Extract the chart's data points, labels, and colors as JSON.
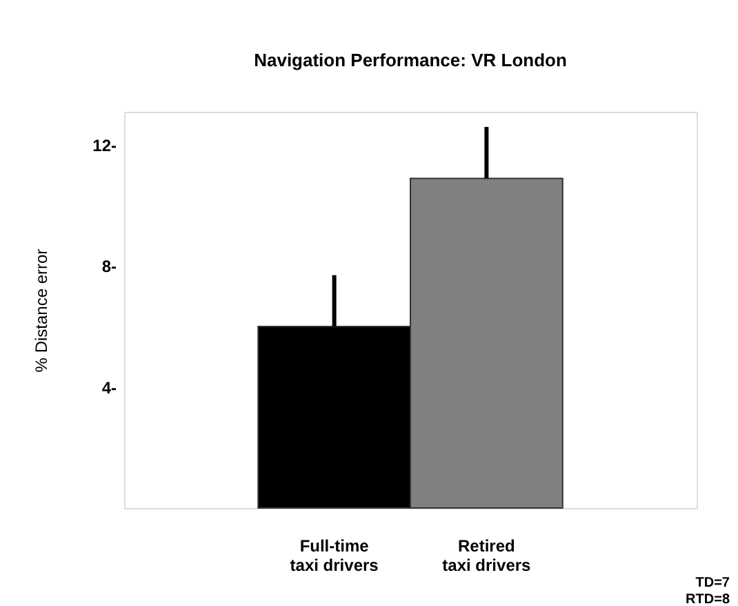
{
  "chart_data": {
    "type": "bar",
    "title": "Navigation Performance: VR London",
    "ylabel": "% Distance error",
    "categories": [
      "Full-time\ntaxi drivers",
      "Retired\ntaxi drivers"
    ],
    "values": [
      6.0,
      10.9
    ],
    "colors": [
      "#000000",
      "#808080"
    ],
    "errors": [
      [
        6.0,
        7.7
      ],
      [
        10.9,
        12.6
      ]
    ],
    "ylim": [
      0,
      13.1
    ],
    "yticks": [
      {
        "value": 4,
        "label": "4-"
      },
      {
        "value": 8,
        "label": "8-"
      },
      {
        "value": 12,
        "label": "12-"
      }
    ],
    "grid": false,
    "legend": false,
    "annotations": [
      "TD=7",
      "RTD=8"
    ]
  }
}
